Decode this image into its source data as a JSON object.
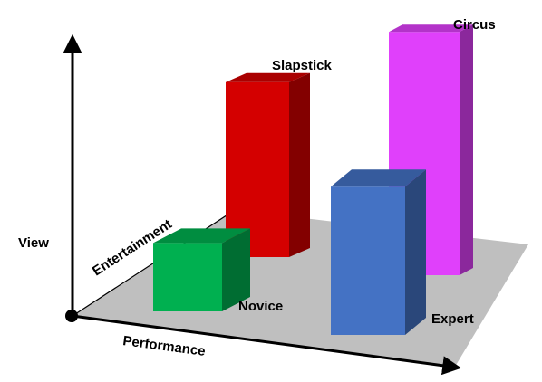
{
  "chart_data": {
    "type": "bar",
    "categories": [
      "Slapstick",
      "Circus",
      "Novice",
      "Expert"
    ],
    "values": [
      4.6,
      6.4,
      1.8,
      3.9
    ],
    "ylim": [
      0,
      7
    ],
    "grid": false,
    "legend": "none",
    "labels": {
      "y_axis": "View",
      "depth_axis": "Entertainment",
      "x_axis": "Performance"
    },
    "series": [
      {
        "category": "Slapstick",
        "value": 4.6,
        "color": "#d40000"
      },
      {
        "category": "Circus",
        "value": 6.4,
        "color": "#e040fb"
      },
      {
        "category": "Novice",
        "value": 1.8,
        "color": "#00b050"
      },
      {
        "category": "Expert",
        "value": 3.9,
        "color": "#4472c4"
      }
    ],
    "colors": {
      "floor": "#bfbfbf",
      "axis": "#000000"
    }
  }
}
